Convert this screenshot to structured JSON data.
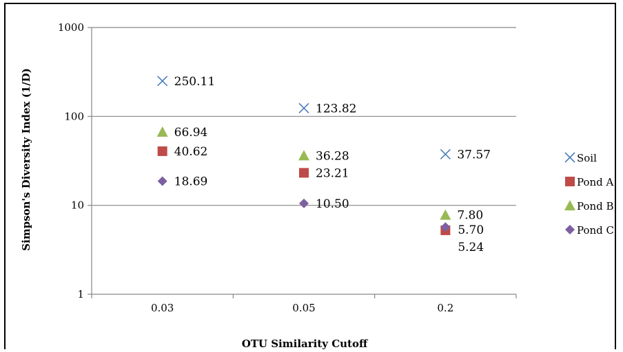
{
  "chart_data": {
    "type": "scatter",
    "title": "",
    "xlabel": "OTU Similarity Cutoff",
    "ylabel": "Simpson's Diversity Index (1/D)",
    "y_scale": "log",
    "ylim": [
      1,
      1000
    ],
    "y_ticks": [
      "1",
      "10",
      "100",
      "1000"
    ],
    "categories": [
      "0.03",
      "0.05",
      "0.2"
    ],
    "legend_position": "right",
    "grid": "horizontal major gridlines",
    "series": [
      {
        "name": "Soil",
        "marker": "x",
        "color": "#4a7ebb",
        "values": [
          250.11,
          123.82,
          37.57
        ],
        "labels": [
          "250.11",
          "123.82",
          "37.57"
        ]
      },
      {
        "name": "Pond A",
        "marker": "square",
        "color": "#be4b48",
        "values": [
          40.62,
          23.21,
          5.24
        ],
        "labels": [
          "40.62",
          "23.21",
          "5.24"
        ]
      },
      {
        "name": "Pond B",
        "marker": "triangle",
        "color": "#98b954",
        "values": [
          66.94,
          36.28,
          7.8
        ],
        "labels": [
          "66.94",
          "36.28",
          "7.80"
        ]
      },
      {
        "name": "Pond C",
        "marker": "diamond",
        "color": "#7d60a0",
        "values": [
          18.69,
          10.5,
          5.7
        ],
        "labels": [
          "18.69",
          "10.50",
          "5.70"
        ]
      }
    ]
  }
}
